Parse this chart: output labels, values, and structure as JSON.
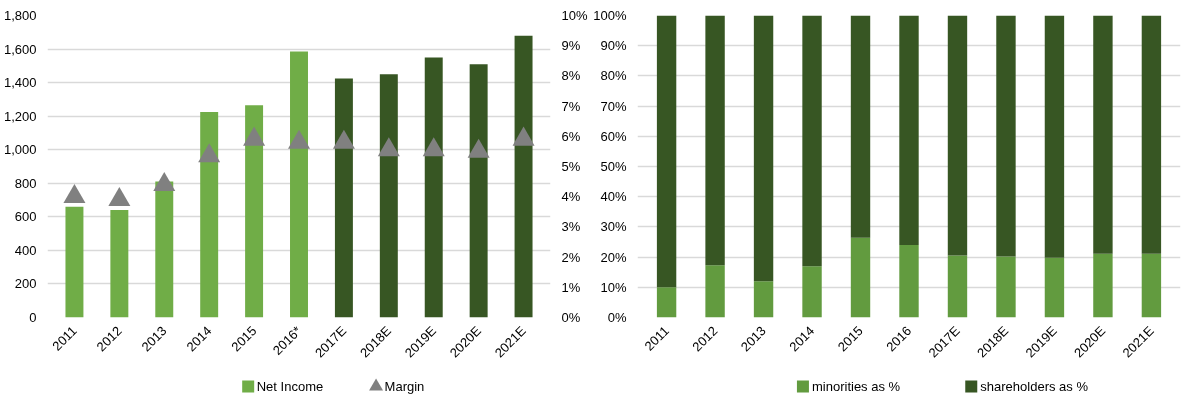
{
  "chart_data": [
    {
      "type": "bar",
      "categories": [
        "2011",
        "2012",
        "2013",
        "2014",
        "2015",
        "2016*",
        "2017E",
        "2018E",
        "2019E",
        "2020E",
        "2021E"
      ],
      "series": [
        {
          "name": "Net Income",
          "type": "bar",
          "color": "#70ad47",
          "colors": [
            "#70ad47",
            "#70ad47",
            "#70ad47",
            "#70ad47",
            "#70ad47",
            "#70ad47",
            "#375623",
            "#375623",
            "#375623",
            "#375623",
            "#375623"
          ],
          "values": [
            660,
            640,
            810,
            1225,
            1265,
            1585,
            1425,
            1450,
            1550,
            1510,
            1680
          ]
        },
        {
          "name": "Margin",
          "type": "scatter",
          "axis": "y2",
          "marker": "triangle",
          "color": "#808080",
          "values": [
            4.0,
            3.9,
            4.4,
            5.35,
            5.9,
            5.8,
            5.8,
            5.55,
            5.55,
            5.5,
            5.9
          ]
        }
      ],
      "ylim": [
        0,
        1800
      ],
      "yticks": [
        0,
        200,
        400,
        600,
        800,
        {
          "value": 1000,
          "label": "1,000"
        },
        {
          "value": 1200,
          "label": "1,200"
        },
        {
          "value": 1400,
          "label": "1,400"
        },
        {
          "value": 1600,
          "label": "1,600"
        },
        {
          "value": 1800,
          "label": "1,800"
        }
      ],
      "y2lim": [
        0,
        10
      ],
      "y2ticks": [
        {
          "value": 0,
          "label": "0%"
        },
        {
          "value": 1,
          "label": "1%"
        },
        {
          "value": 2,
          "label": "2%"
        },
        {
          "value": 3,
          "label": "3%"
        },
        {
          "value": 4,
          "label": "4%"
        },
        {
          "value": 5,
          "label": "5%"
        },
        {
          "value": 6,
          "label": "6%"
        },
        {
          "value": 7,
          "label": "7%"
        },
        {
          "value": 8,
          "label": "8%"
        },
        {
          "value": 9,
          "label": "9%"
        },
        {
          "value": 10,
          "label": "10%"
        }
      ],
      "grid": "y",
      "legend": "bottom"
    },
    {
      "type": "bar",
      "stacked": true,
      "categories": [
        "2011",
        "2012",
        "2013",
        "2014",
        "2015",
        "2016",
        "2017E",
        "2018E",
        "2019E",
        "2020E",
        "2021E"
      ],
      "series": [
        {
          "name": "minorities as %",
          "color": "#629b3f",
          "values": [
            10,
            17.3,
            12,
            17,
            26.4,
            24,
            20.5,
            20.2,
            19.8,
            21.1,
            21.1
          ]
        },
        {
          "name": "shareholders as %",
          "color": "#375623",
          "values": [
            90,
            82.7,
            88,
            83,
            73.6,
            76,
            79.5,
            79.8,
            80.2,
            78.9,
            78.9
          ]
        }
      ],
      "ylim": [
        0,
        100
      ],
      "yticks": [
        {
          "value": 0,
          "label": "0%"
        },
        {
          "value": 10,
          "label": "10%"
        },
        {
          "value": 20,
          "label": "20%"
        },
        {
          "value": 30,
          "label": "30%"
        },
        {
          "value": 40,
          "label": "40%"
        },
        {
          "value": 50,
          "label": "50%"
        },
        {
          "value": 60,
          "label": "60%"
        },
        {
          "value": 70,
          "label": "70%"
        },
        {
          "value": 80,
          "label": "80%"
        },
        {
          "value": 90,
          "label": "90%"
        },
        {
          "value": 100,
          "label": "100%"
        }
      ],
      "grid": "y",
      "legend": "bottom"
    }
  ]
}
